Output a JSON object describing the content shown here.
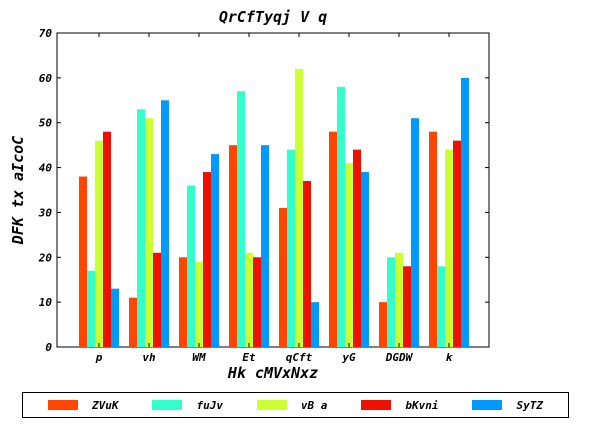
{
  "chart_data": {
    "type": "bar",
    "title": "QrCfTyqj V q",
    "xlabel": "Hk cMVxNxz",
    "ylabel": "DFK tx aIcoC",
    "categories": [
      "p",
      "vh",
      "WM",
      "Et",
      "qCft",
      "yG",
      "DGDW",
      "k"
    ],
    "ylim": [
      0,
      70
    ],
    "yticks": [
      0,
      10,
      20,
      30,
      40,
      50,
      60,
      70
    ],
    "grid": false,
    "legend_position": "bottom",
    "series": [
      {
        "name": "ZVuK",
        "color": "#ff4500",
        "values": [
          38,
          11,
          20,
          45,
          31,
          48,
          10,
          48
        ]
      },
      {
        "name": "fuJv",
        "color": "#33ffcc",
        "values": [
          17,
          53,
          36,
          57,
          44,
          58,
          20,
          18
        ]
      },
      {
        "name": "vB a",
        "color": "#ccff33",
        "values": [
          46,
          51,
          19,
          21,
          62,
          41,
          21,
          44
        ]
      },
      {
        "name": "bKvni",
        "color": "#ee1100",
        "values": [
          48,
          21,
          39,
          20,
          37,
          44,
          18,
          46
        ]
      },
      {
        "name": "SyTZ",
        "color": "#0099ff",
        "values": [
          13,
          55,
          43,
          45,
          10,
          39,
          51,
          60
        ]
      }
    ]
  }
}
